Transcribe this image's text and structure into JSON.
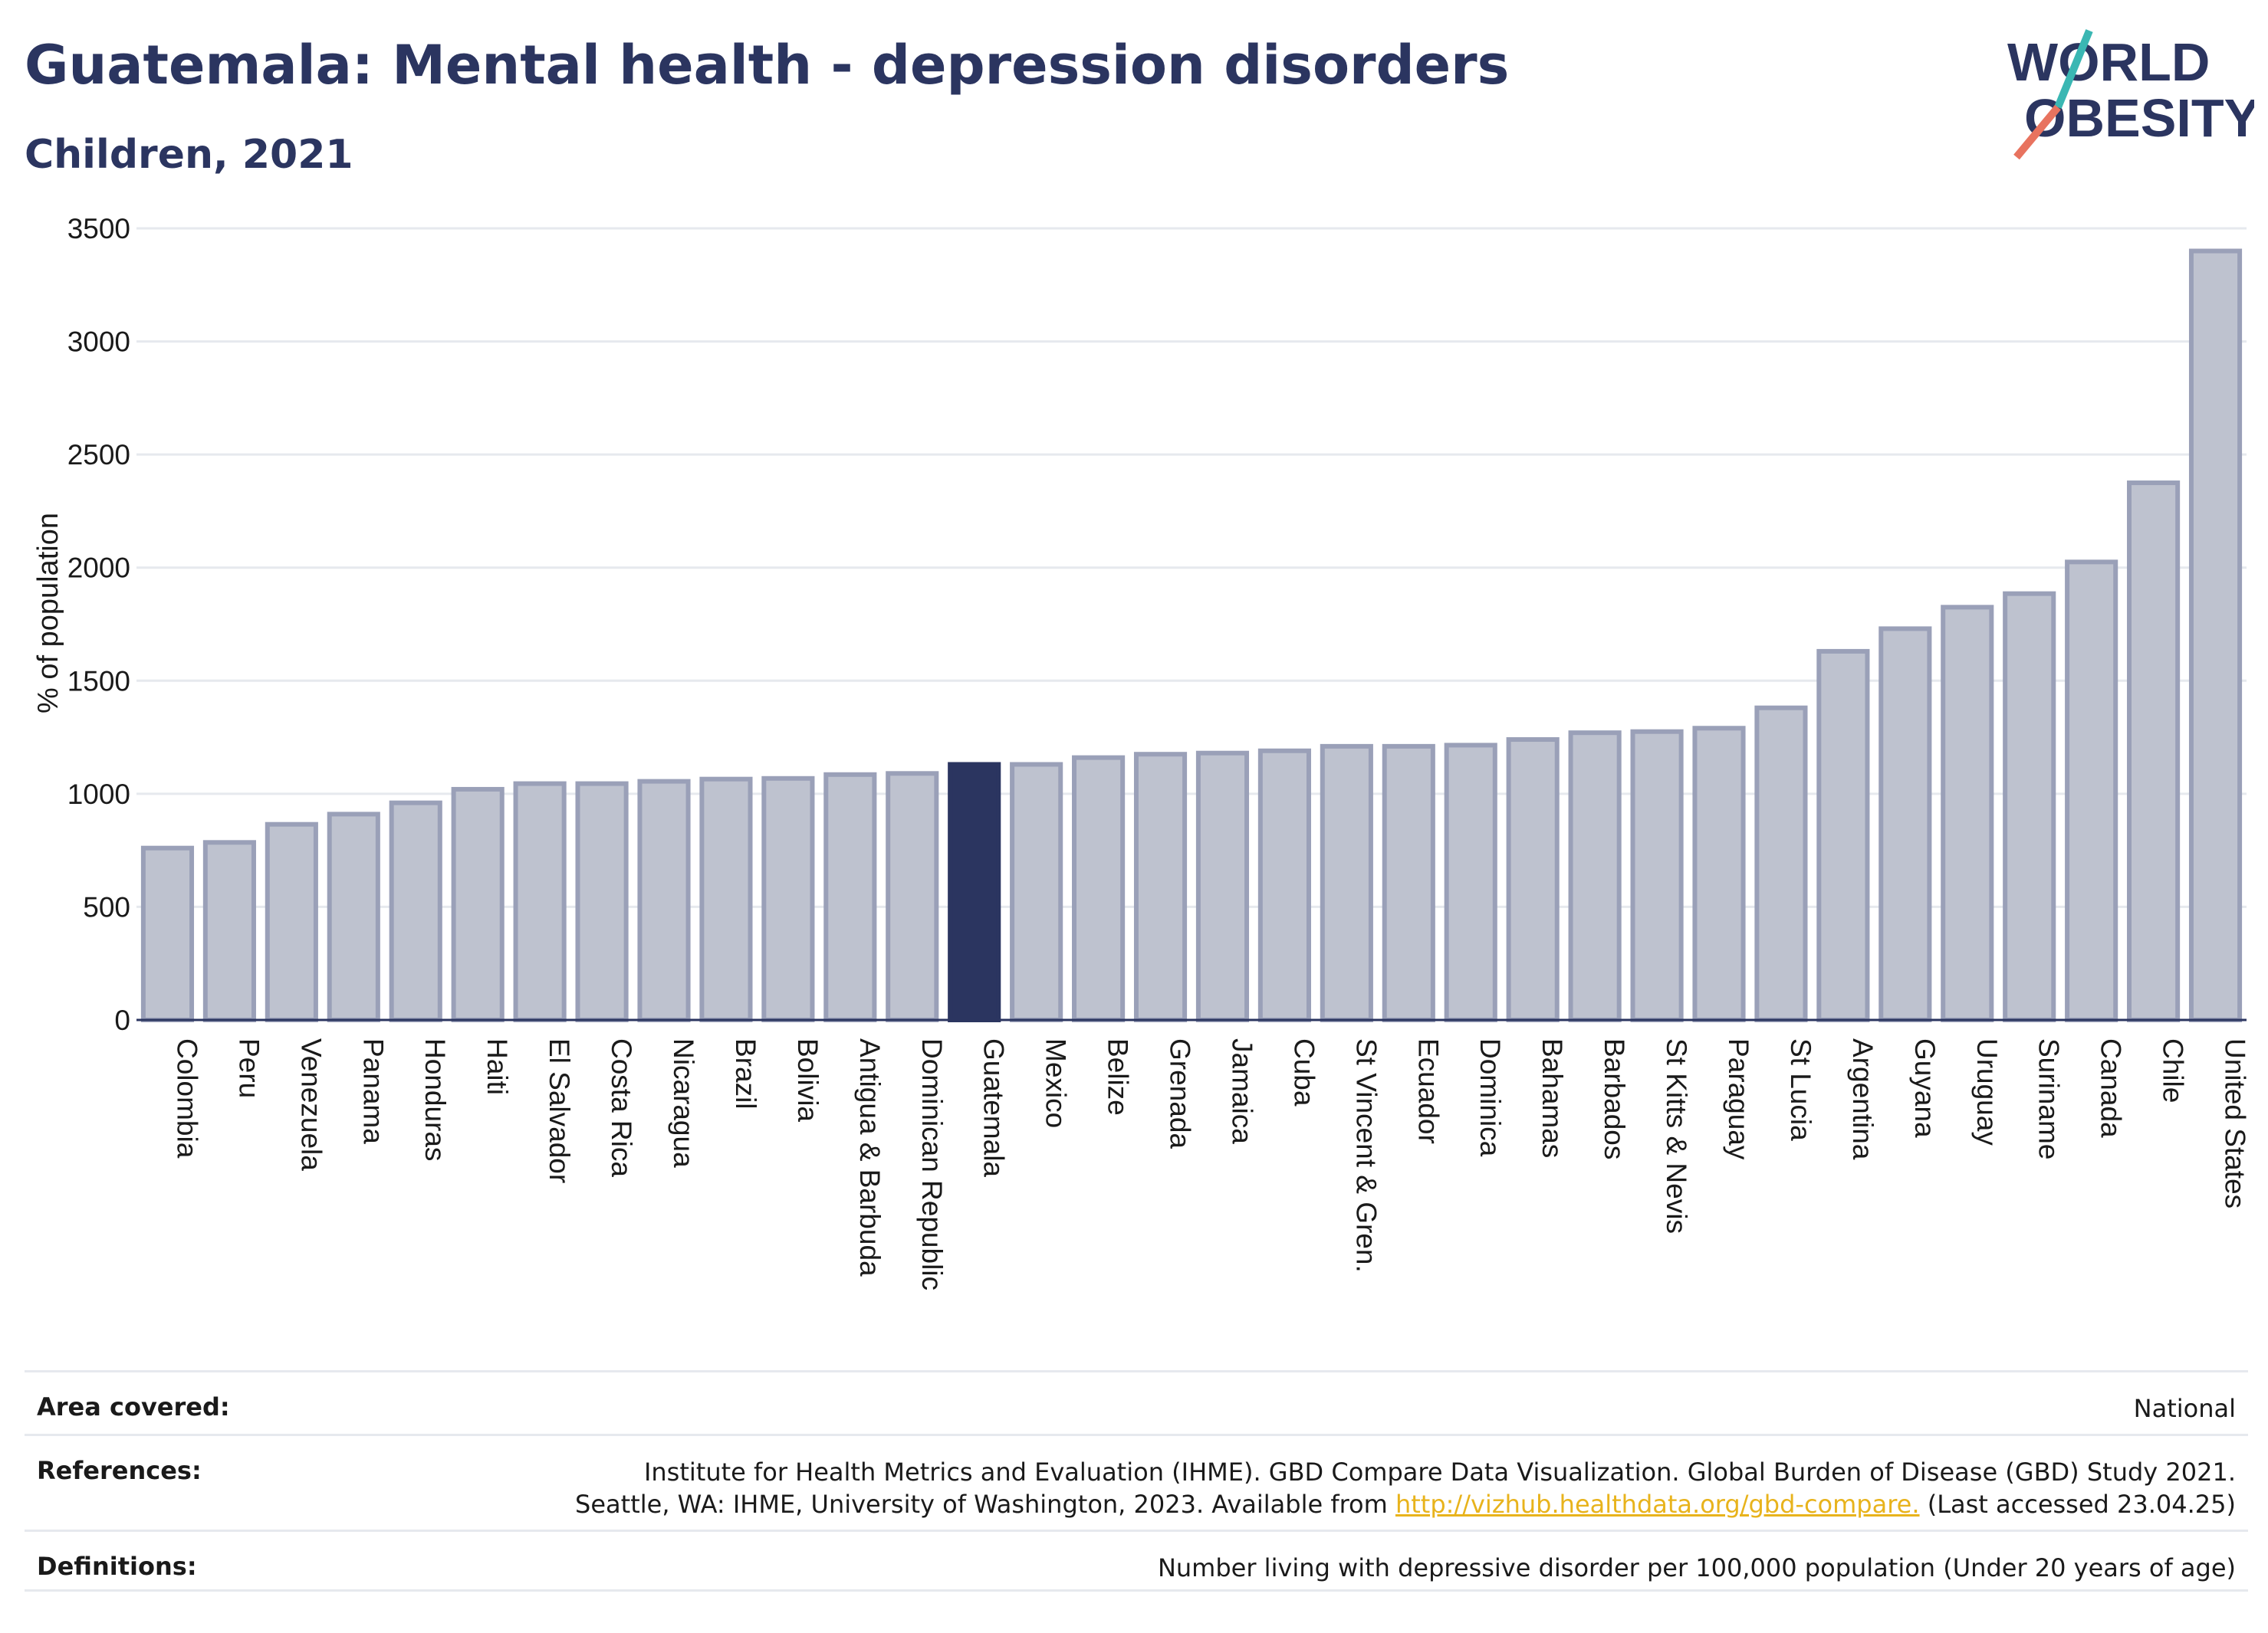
{
  "header": {
    "title": "Guatemala: Mental health - depression disorders",
    "subtitle": "Children, 2021"
  },
  "logo": {
    "line1": "WORLD",
    "line2": "OBESITY"
  },
  "colors": {
    "highlight": "#2b3560",
    "bar_fill": "#bec2cf",
    "bar_stroke": "#9aa0b8",
    "accent_teal": "#3ab7b3",
    "accent_coral": "#e8735f"
  },
  "chart_data": {
    "type": "bar",
    "ylabel": "% of population",
    "ylim": [
      0,
      3500
    ],
    "yticks": [
      0,
      500,
      1000,
      1500,
      2000,
      2500,
      3000,
      3500
    ],
    "highlight": "Guatemala",
    "categories": [
      "Colombia",
      "Peru",
      "Venezuela",
      "Panama",
      "Honduras",
      "Haiti",
      "El Salvador",
      "Costa Rica",
      "Nicaragua",
      "Brazil",
      "Bolivia",
      "Antigua & Barbuda",
      "Dominican Republic",
      "Guatemala",
      "Mexico",
      "Belize",
      "Grenada",
      "Jamaica",
      "Cuba",
      "St Vincent & Gren.",
      "Ecuador",
      "Dominica",
      "Bahamas",
      "Barbados",
      "St Kitts & Nevis",
      "Paraguay",
      "St Lucia",
      "Argentina",
      "Guyana",
      "Uruguay",
      "Suriname",
      "Canada",
      "Chile",
      "United States"
    ],
    "values": [
      760,
      785,
      865,
      910,
      960,
      1020,
      1045,
      1045,
      1055,
      1065,
      1068,
      1085,
      1090,
      1130,
      1130,
      1160,
      1175,
      1180,
      1190,
      1210,
      1210,
      1215,
      1240,
      1270,
      1275,
      1290,
      1380,
      1630,
      1730,
      1825,
      1885,
      2025,
      2375,
      3400
    ]
  },
  "footer": {
    "area_label": "Area covered:",
    "area_value": "National",
    "references_label": "References:",
    "references_line1": "Institute for Health Metrics and Evaluation (IHME). GBD Compare Data Visualization. Global Burden of Disease (GBD) Study 2021.",
    "references_line2_pre": "Seattle, WA: IHME, University of Washington, 2023. Available from ",
    "references_link": "http://vizhub.healthdata.org/gbd-compare.",
    "references_line2_post": " (Last accessed 23.04.25)",
    "definitions_label": "Definitions:",
    "definitions_value": "Number living with depressive disorder per 100,000 population (Under 20 years of age)"
  }
}
